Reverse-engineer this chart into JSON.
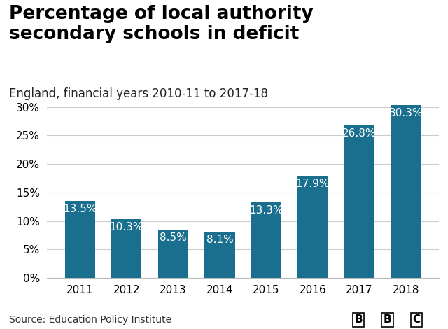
{
  "title": "Percentage of local authority\nsecondary schools in deficit",
  "subtitle": "England, financial years 2010-11 to 2017-18",
  "source": "Source: Education Policy Institute",
  "categories": [
    "2011",
    "2012",
    "2013",
    "2014",
    "2015",
    "2016",
    "2017",
    "2018"
  ],
  "values": [
    13.5,
    10.3,
    8.5,
    8.1,
    13.3,
    17.9,
    26.8,
    30.3
  ],
  "bar_color": "#1a6e8e",
  "label_color": "#ffffff",
  "background_color": "#ffffff",
  "ylim": [
    0,
    32
  ],
  "yticks": [
    0,
    5,
    10,
    15,
    20,
    25,
    30
  ],
  "title_fontsize": 19,
  "subtitle_fontsize": 12,
  "source_fontsize": 10,
  "label_fontsize": 11,
  "tick_fontsize": 11
}
